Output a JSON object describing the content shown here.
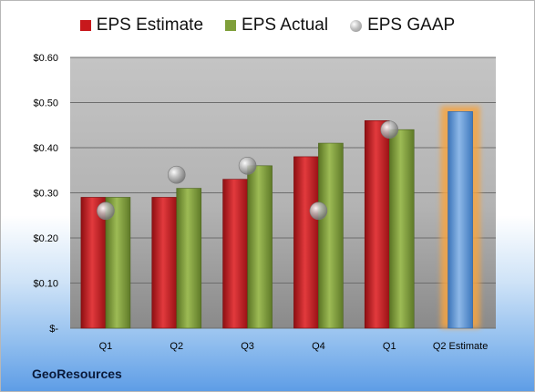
{
  "legend": {
    "estimate": "EPS Estimate",
    "actual": "EPS Actual",
    "gaap": "EPS GAAP"
  },
  "company": "GeoResources",
  "colors": {
    "estimate": "#c8181c",
    "actual": "#7f9f3a",
    "forecast": "#5b9bd5",
    "gaap": "#9a9a9a"
  },
  "chart_data": {
    "type": "bar",
    "categories": [
      "Q1",
      "Q2",
      "Q3",
      "Q4",
      "Q1",
      "Q2 Estimate"
    ],
    "series": [
      {
        "name": "EPS Estimate",
        "values": [
          0.29,
          0.29,
          0.33,
          0.38,
          0.46,
          null
        ]
      },
      {
        "name": "EPS Actual",
        "values": [
          0.29,
          0.31,
          0.36,
          0.41,
          0.44,
          null
        ]
      },
      {
        "name": "EPS GAAP",
        "type": "scatter",
        "values": [
          0.26,
          0.34,
          0.36,
          0.26,
          0.44,
          null
        ]
      }
    ],
    "forecast": {
      "category": "Q2 Estimate",
      "value": 0.48
    },
    "ylim": [
      0,
      0.6
    ],
    "yticks": [
      0,
      0.1,
      0.2,
      0.3,
      0.4,
      0.5,
      0.6
    ],
    "ytick_labels": [
      "$-",
      "$0.10",
      "$0.20",
      "$0.30",
      "$0.40",
      "$0.50",
      "$0.60"
    ],
    "grid": true,
    "legend_position": "top"
  }
}
